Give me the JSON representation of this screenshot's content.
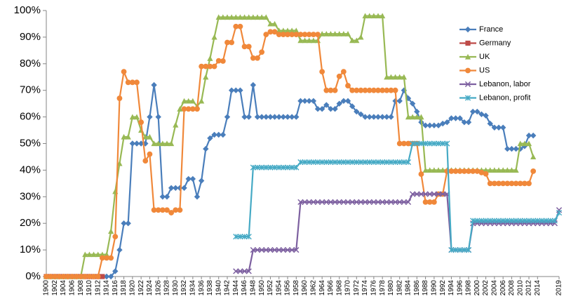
{
  "chart_data": {
    "type": "line",
    "x": [
      1900,
      1901,
      1902,
      1903,
      1904,
      1905,
      1906,
      1907,
      1908,
      1909,
      1910,
      1911,
      1912,
      1913,
      1914,
      1915,
      1916,
      1917,
      1918,
      1919,
      1920,
      1921,
      1922,
      1923,
      1924,
      1925,
      1926,
      1927,
      1928,
      1929,
      1930,
      1931,
      1932,
      1933,
      1934,
      1935,
      1936,
      1937,
      1938,
      1939,
      1940,
      1941,
      1942,
      1943,
      1944,
      1945,
      1946,
      1947,
      1948,
      1949,
      1950,
      1951,
      1952,
      1953,
      1954,
      1955,
      1956,
      1957,
      1958,
      1959,
      1960,
      1961,
      1962,
      1963,
      1964,
      1965,
      1966,
      1967,
      1968,
      1969,
      1970,
      1971,
      1972,
      1973,
      1974,
      1975,
      1976,
      1977,
      1978,
      1979,
      1980,
      1981,
      1982,
      1983,
      1984,
      1985,
      1986,
      1987,
      1988,
      1989,
      1990,
      1991,
      1992,
      1993,
      1994,
      1995,
      1996,
      1997,
      1998,
      1999,
      2000,
      2001,
      2002,
      2003,
      2004,
      2005,
      2006,
      2007,
      2008,
      2009,
      2010,
      2011,
      2012,
      2013,
      2014,
      2015,
      2016,
      2017,
      2018,
      2019
    ],
    "xlim": [
      1900,
      2019
    ],
    "xticks": [
      1900,
      1902,
      1904,
      1906,
      1908,
      1910,
      1912,
      1914,
      1916,
      1918,
      1920,
      1922,
      1924,
      1926,
      1928,
      1930,
      1932,
      1934,
      1936,
      1938,
      1940,
      1942,
      1944,
      1946,
      1948,
      1950,
      1952,
      1954,
      1956,
      1958,
      1960,
      1962,
      1964,
      1966,
      1968,
      1970,
      1972,
      1974,
      1976,
      1978,
      1980,
      1982,
      1984,
      1986,
      1988,
      1990,
      1992,
      1994,
      1996,
      1998,
      2000,
      2002,
      2004,
      2006,
      2008,
      2010,
      2012,
      2014,
      2019
    ],
    "ylim": [
      0,
      100
    ],
    "yticks": [
      {
        "value": 0,
        "label": "0%"
      },
      {
        "value": 10,
        "label": "10%"
      },
      {
        "value": 20,
        "label": "20%"
      },
      {
        "value": 30,
        "label": "30%"
      },
      {
        "value": 40,
        "label": "40%"
      },
      {
        "value": 50,
        "label": "50%"
      },
      {
        "value": 60,
        "label": "60%"
      },
      {
        "value": 70,
        "label": "70%"
      },
      {
        "value": 80,
        "label": "80%"
      },
      {
        "value": 90,
        "label": "90%"
      },
      {
        "value": 100,
        "label": "100%"
      }
    ],
    "grid": false,
    "legend": "upper right",
    "series": [
      {
        "name": "France",
        "color": "#4a7ebb",
        "marker": "diamond",
        "values": [
          null,
          null,
          null,
          null,
          null,
          null,
          null,
          null,
          null,
          null,
          null,
          null,
          null,
          null,
          0,
          0,
          2,
          10,
          20,
          20,
          50,
          50,
          50,
          50,
          60,
          72,
          60,
          30,
          30,
          33.3,
          33.3,
          33.3,
          33.3,
          36.7,
          36.7,
          30,
          36,
          48,
          52,
          53.3,
          53.3,
          53.3,
          60,
          70,
          70,
          70,
          60,
          60,
          72,
          60,
          60,
          60,
          60,
          60,
          60,
          60,
          60,
          60,
          60,
          66,
          66,
          66,
          66,
          63,
          63,
          64.5,
          63,
          63,
          65,
          66,
          66,
          64,
          62,
          61,
          60,
          60,
          60,
          60,
          60,
          60,
          60,
          66,
          66,
          70,
          67,
          65,
          62,
          58,
          56.8,
          56.8,
          56.8,
          56.8,
          57.5,
          58,
          59.5,
          59.5,
          59.5,
          58,
          58,
          62,
          62,
          61,
          60.5,
          57.5,
          56,
          56,
          56,
          48,
          48,
          48,
          48,
          49,
          53,
          53,
          null,
          null,
          null,
          null,
          null,
          null
        ]
      },
      {
        "name": "Germany",
        "color": "#be4b48",
        "marker": "square",
        "values": [
          0,
          0,
          0,
          0,
          0,
          0,
          0,
          0,
          0,
          0,
          0,
          0,
          0,
          0,
          null,
          null,
          null,
          null,
          null,
          null,
          null,
          null,
          null,
          null,
          null,
          null,
          null,
          null,
          null,
          null,
          null,
          null,
          null,
          null,
          null,
          null,
          null,
          null,
          null,
          null,
          null,
          null,
          null,
          null,
          null,
          null,
          null,
          null,
          null,
          null,
          null,
          null,
          null,
          null,
          null,
          null,
          null,
          null,
          null,
          null,
          null,
          null,
          null,
          null,
          null,
          null,
          null,
          null,
          null,
          null,
          null,
          null,
          null,
          null,
          null,
          null,
          null,
          null,
          null,
          null,
          null,
          null,
          null,
          null,
          null,
          null,
          null,
          null,
          null,
          null,
          null,
          null,
          null,
          null,
          null,
          null,
          null,
          null,
          null,
          null,
          null,
          null,
          null,
          null,
          null,
          null,
          null,
          null,
          null,
          null,
          null,
          null,
          null,
          null,
          null,
          null,
          null,
          null,
          null,
          null
        ]
      },
      {
        "name": "UK",
        "color": "#98b954",
        "marker": "triangle",
        "values": [
          0,
          0,
          0,
          0,
          0,
          0,
          0,
          0,
          0,
          8.3,
          8.3,
          8.3,
          8.3,
          8.3,
          8.3,
          17,
          32,
          42.5,
          52.5,
          52.5,
          60,
          60,
          55,
          52.5,
          52.5,
          50,
          50,
          50,
          50,
          50,
          57,
          63,
          66,
          66,
          66,
          64,
          66,
          75,
          82,
          90,
          97.5,
          97.5,
          97.5,
          97.5,
          97.5,
          97.5,
          97.5,
          97.5,
          97.5,
          97.5,
          97.5,
          97.5,
          95,
          95,
          92.5,
          92.5,
          92.5,
          92.5,
          92.5,
          88.75,
          88.75,
          88.75,
          88.75,
          88.75,
          91.25,
          91.25,
          91.25,
          91.25,
          91.25,
          91.25,
          91.25,
          88.75,
          88.75,
          90,
          98,
          98,
          98,
          98,
          98,
          75,
          75,
          75,
          75,
          75,
          60,
          60,
          60,
          60,
          40,
          40,
          40,
          40,
          40,
          40,
          40,
          40,
          40,
          40,
          40,
          40,
          40,
          40,
          40,
          40,
          40,
          40,
          40,
          40,
          40,
          40,
          50,
          50,
          50,
          45,
          null,
          null,
          null,
          null,
          null,
          null
        ]
      },
      {
        "name": "US",
        "color": "#f0883a",
        "marker": "circle",
        "values": [
          0,
          0,
          0,
          0,
          0,
          0,
          0,
          0,
          0,
          0,
          0,
          0,
          0,
          7,
          7,
          7,
          15,
          67,
          77,
          73,
          73,
          73,
          58,
          43.5,
          46,
          25,
          25,
          25,
          25,
          24,
          25,
          25,
          63,
          63,
          63,
          63,
          79,
          79,
          79,
          79,
          81.1,
          81,
          88,
          88,
          94,
          94,
          86.45,
          86.45,
          82.13,
          82.13,
          84.36,
          91,
          92,
          92,
          91,
          91,
          91,
          91,
          91,
          91,
          91,
          91,
          91,
          91,
          77,
          70,
          70,
          70,
          75.25,
          77,
          71.75,
          70,
          70,
          70,
          70,
          70,
          70,
          70,
          70,
          70,
          70,
          70,
          50,
          50,
          50,
          50,
          50,
          38.5,
          28,
          28,
          28,
          31,
          31,
          39.6,
          39.6,
          39.6,
          39.6,
          39.6,
          39.6,
          39.6,
          39.6,
          39.1,
          38.6,
          35,
          35,
          35,
          35,
          35,
          35,
          35,
          35,
          35,
          35,
          39.6,
          null,
          null,
          null,
          null,
          null,
          null
        ]
      },
      {
        "name": "Lebanon, labor",
        "color": "#7d60a0",
        "marker": "x",
        "values": [
          null,
          null,
          null,
          null,
          null,
          null,
          null,
          null,
          null,
          null,
          null,
          null,
          null,
          null,
          null,
          null,
          null,
          null,
          null,
          null,
          null,
          null,
          null,
          null,
          null,
          null,
          null,
          null,
          null,
          null,
          null,
          null,
          null,
          null,
          null,
          null,
          null,
          null,
          null,
          null,
          null,
          null,
          null,
          null,
          2,
          2,
          2,
          2,
          10,
          10,
          10,
          10,
          10,
          10,
          10,
          10,
          10,
          10,
          10,
          28,
          28,
          28,
          28,
          28,
          28,
          28,
          28,
          28,
          28,
          28,
          28,
          28,
          28,
          28,
          28,
          28,
          28,
          28,
          28,
          28,
          28,
          28,
          28,
          28,
          28,
          31,
          31,
          31,
          31,
          31,
          31,
          31,
          31,
          31,
          10,
          10,
          10,
          10,
          10,
          20,
          20,
          20,
          20,
          20,
          20,
          20,
          20,
          20,
          20,
          20,
          20,
          20,
          20,
          20,
          20,
          20,
          20,
          20,
          20,
          25
        ]
      },
      {
        "name": "Lebanon, profit",
        "color": "#46aac5",
        "marker": "star",
        "values": [
          null,
          null,
          null,
          null,
          null,
          null,
          null,
          null,
          null,
          null,
          null,
          null,
          null,
          null,
          null,
          null,
          null,
          null,
          null,
          null,
          null,
          null,
          null,
          null,
          null,
          null,
          null,
          null,
          null,
          null,
          null,
          null,
          null,
          null,
          null,
          null,
          null,
          null,
          null,
          null,
          null,
          null,
          null,
          null,
          15,
          15,
          15,
          15,
          41,
          41,
          41,
          41,
          41,
          41,
          41,
          41,
          41,
          41,
          41,
          43,
          43,
          43,
          43,
          43,
          43,
          43,
          43,
          43,
          43,
          43,
          43,
          43,
          43,
          43,
          43,
          43,
          43,
          43,
          43,
          43,
          43,
          43,
          43,
          43,
          43,
          50,
          50,
          50,
          50,
          50,
          50,
          50,
          50,
          50,
          10,
          10,
          10,
          10,
          10,
          21,
          21,
          21,
          21,
          21,
          21,
          21,
          21,
          21,
          21,
          21,
          21,
          21,
          21,
          21,
          21,
          21,
          21,
          21,
          21,
          24
        ]
      }
    ]
  }
}
